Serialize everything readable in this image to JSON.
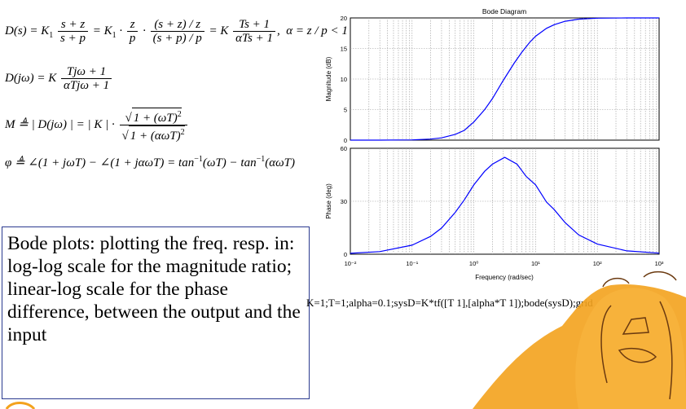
{
  "equations": {
    "line1": "D(s) = K₁ (s+z)/(s+p) = K₁ · z/p · ((s+z)/z)/((s+p)/p) = K (Ts+1)/(αTs+1), α = z/p < 1",
    "line2": "D(jω) = K (Tjω+1)/(αTjω+1)",
    "line3": "M ≜ |D(jω)| = |K| · √(1+(ωT)²)/√(1+(αωT)²)",
    "line4": "φ ≜ ∠(1+jωT) − ∠(1+jαωT) = tan⁻¹(ωT) − tan⁻¹(αωT)"
  },
  "description_text": "Bode plots: plotting the freq. resp. in: log-log scale for the magnitude ratio; linear-log scale for the phase difference, between the output and the input",
  "matlab_command": "K=1;T=1;alpha=0.1;sysD=K*tf([T 1],[alpha*T 1]);bode(sysD);grid",
  "chart_data": [
    {
      "type": "line",
      "title": "Bode Diagram",
      "ylabel": "Magnitude (dB)",
      "xlabel": "",
      "x_scale": "log",
      "xlim": [
        0.01,
        1000
      ],
      "ylim": [
        0,
        20
      ],
      "yticks": [
        0,
        5,
        10,
        15,
        20
      ],
      "grid": true,
      "color": "#0000ff",
      "series": [
        {
          "x": [
            0.01,
            0.03,
            0.1,
            0.2,
            0.3,
            0.5,
            0.7,
            1,
            1.5,
            2,
            3,
            4.5,
            6,
            8,
            10,
            15,
            20,
            30,
            50,
            100,
            300,
            1000
          ],
          "values": [
            0.0,
            0.0,
            0.04,
            0.17,
            0.38,
            0.95,
            1.6,
            2.97,
            5.0,
            6.8,
            9.8,
            12.6,
            14.4,
            16.0,
            17.0,
            18.3,
            18.9,
            19.45,
            19.8,
            19.96,
            20.0,
            20.0
          ]
        }
      ]
    },
    {
      "type": "line",
      "title": "",
      "ylabel": "Phase (deg)",
      "xlabel": "Frequency (rad/sec)",
      "x_scale": "log",
      "xlim": [
        0.01,
        1000
      ],
      "ylim": [
        0,
        60
      ],
      "yticks": [
        0,
        30,
        60
      ],
      "xtick_labels": [
        "10⁻²",
        "10⁻¹",
        "10⁰",
        "10¹",
        "10²",
        "10³"
      ],
      "grid": true,
      "color": "#0000ff",
      "series": [
        {
          "x": [
            0.01,
            0.03,
            0.1,
            0.2,
            0.3,
            0.5,
            0.7,
            1,
            1.5,
            2,
            3.16,
            5,
            7,
            10,
            15,
            20,
            30,
            50,
            100,
            300,
            1000
          ],
          "values": [
            0.5,
            1.5,
            5.1,
            10.1,
            14.8,
            23.7,
            30.8,
            39.3,
            47.0,
            51.0,
            54.9,
            51.0,
            44.1,
            39.3,
            29.6,
            25.3,
            17.9,
            10.9,
            5.7,
            1.9,
            0.6
          ]
        }
      ]
    }
  ]
}
